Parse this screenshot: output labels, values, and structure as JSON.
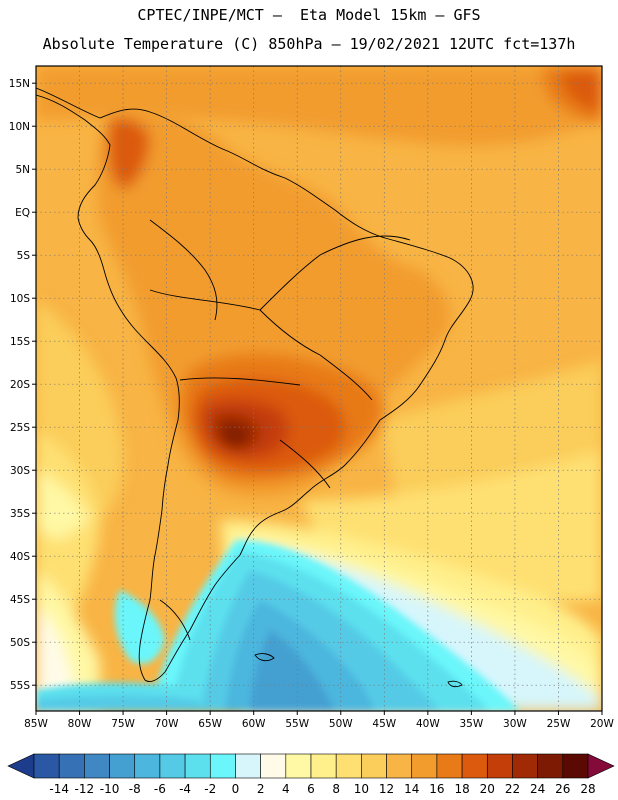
{
  "header": {
    "line1": "CPTEC/INPE/MCT –  Eta Model 15km – GFS",
    "line2": "Absolute Temperature (C) 850hPa – 19/02/2021 12UTC fct=137h"
  },
  "map_data": {
    "variable": "Absolute Temperature",
    "unit": "C",
    "level": "850hPa",
    "model": "Eta Model 15km",
    "driver": "GFS",
    "date": "19/02/2021",
    "run": "12UTC",
    "forecast_hour": "137h",
    "lon_range": [
      -85,
      -20
    ],
    "lat_range": [
      -58,
      17
    ],
    "lat_ticks": [
      "15N",
      "10N",
      "5N",
      "EQ",
      "5S",
      "10S",
      "15S",
      "20S",
      "25S",
      "30S",
      "35S",
      "40S",
      "45S",
      "50S",
      "55S"
    ],
    "lon_ticks": [
      "85W",
      "80W",
      "75W",
      "70W",
      "65W",
      "60W",
      "55W",
      "50W",
      "45W",
      "40W",
      "35W",
      "30W",
      "25W",
      "20W"
    ]
  },
  "legend": {
    "labels": [
      "-14",
      "-12",
      "-10",
      "-8",
      "-6",
      "-4",
      "-2",
      "0",
      "2",
      "4",
      "6",
      "8",
      "10",
      "12",
      "14",
      "16",
      "18",
      "20",
      "22",
      "24",
      "26",
      "28"
    ],
    "colors": [
      "#1e3c8c",
      "#2a58a4",
      "#3571b4",
      "#3f88c4",
      "#45a0d2",
      "#4cb6de",
      "#54cae6",
      "#5ce0ee",
      "#6af6fa",
      "#d6f6fc",
      "#fffbe8",
      "#fff8a4",
      "#fff08c",
      "#fee072",
      "#fbcd5a",
      "#f8b444",
      "#f29c2e",
      "#e87a18",
      "#dc5a0e",
      "#c43e0a",
      "#a02a06",
      "#7c1a04",
      "#5a0a02",
      "#840a3a"
    ]
  }
}
